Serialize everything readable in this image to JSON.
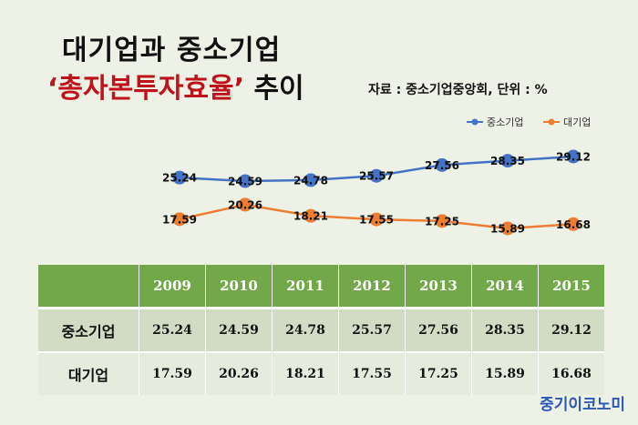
{
  "header": {
    "title_line1": "대기업과 중소기업",
    "title_line2_quoted": "‘총자본투자효율’",
    "title_line2_rest": " 추이",
    "source": "자료 : 중소기업중앙회, 단위 : %"
  },
  "chart_data": {
    "type": "line",
    "title": "대기업과 중소기업 ‘총자본투자효율’ 추이",
    "categories": [
      "2009",
      "2010",
      "2011",
      "2012",
      "2013",
      "2014",
      "2015"
    ],
    "series": [
      {
        "name": "중소기업",
        "values": [
          25.24,
          24.59,
          24.78,
          25.57,
          27.56,
          28.35,
          29.12
        ],
        "color": "#4472c4"
      },
      {
        "name": "대기업",
        "values": [
          17.59,
          20.26,
          18.21,
          17.55,
          17.25,
          15.89,
          16.68
        ],
        "color": "#ed7d31"
      }
    ],
    "legend_position": "top-right",
    "grid": false,
    "unit": "%"
  },
  "table": {
    "header_blank": "",
    "years": [
      "2009",
      "2010",
      "2011",
      "2012",
      "2013",
      "2014",
      "2015"
    ],
    "rows": [
      {
        "label": "중소기업",
        "values": [
          "25.24",
          "24.59",
          "24.78",
          "25.57",
          "27.56",
          "28.35",
          "29.12"
        ]
      },
      {
        "label": "대기업",
        "values": [
          "17.59",
          "20.26",
          "18.21",
          "17.55",
          "17.25",
          "15.89",
          "16.68"
        ]
      }
    ],
    "header_color": "#72a84a"
  },
  "brand": "중기이코노미"
}
